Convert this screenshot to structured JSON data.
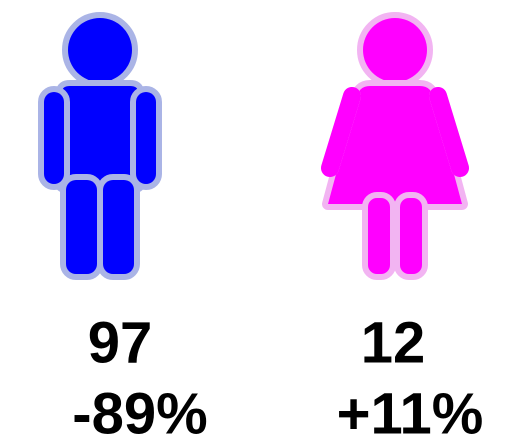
{
  "figures": [
    {
      "count": 97,
      "change": "-89%"
    },
    {
      "count": 12,
      "change": "+11%"
    }
  ]
}
